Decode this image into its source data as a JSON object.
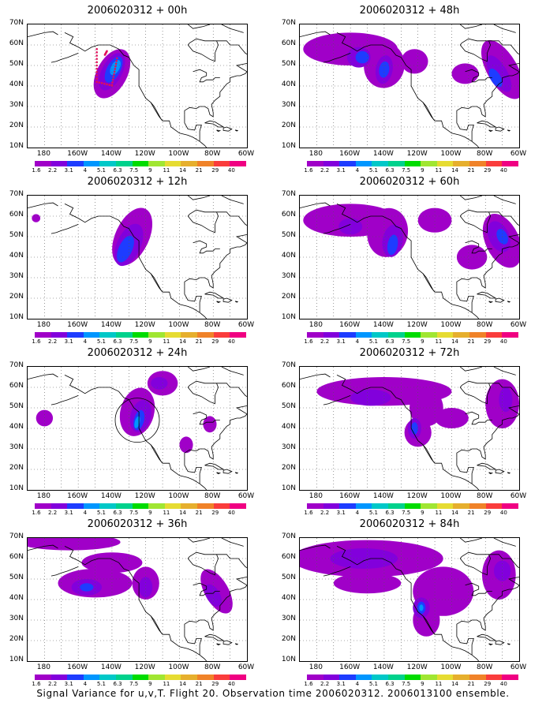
{
  "caption": "Signal Variance for u,v,T. Flight 20. Observation time 2006020312. 2006013100 ensemble.",
  "lat_labels": [
    "70N",
    "60N",
    "50N",
    "40N",
    "30N",
    "20N",
    "10N"
  ],
  "lon_labels": [
    "180",
    "160W",
    "140W",
    "120W",
    "100W",
    "80W",
    "60W"
  ],
  "colorbar": {
    "labels": [
      "1.6",
      "2.2",
      "3.1",
      "4",
      "5.1",
      "6.3",
      "7.5",
      "9",
      "11",
      "14",
      "21",
      "29",
      "40"
    ],
    "colors": [
      "#a000c8",
      "#8200dc",
      "#1e3cff",
      "#0096ff",
      "#00c8c8",
      "#00d28c",
      "#00dc00",
      "#a0e632",
      "#e6dc32",
      "#e6af2d",
      "#f08228",
      "#fa3c3c",
      "#f00082"
    ]
  },
  "panels": [
    {
      "title": "2006020312 + 00h",
      "lead_hours": 0
    },
    {
      "title": "2006020312 + 48h",
      "lead_hours": 48
    },
    {
      "title": "2006020312 + 12h",
      "lead_hours": 12
    },
    {
      "title": "2006020312 + 60h",
      "lead_hours": 60
    },
    {
      "title": "2006020312 + 24h",
      "lead_hours": 24
    },
    {
      "title": "2006020312 + 72h",
      "lead_hours": 72
    },
    {
      "title": "2006020312 + 36h",
      "lead_hours": 36
    },
    {
      "title": "2006020312 + 84h",
      "lead_hours": 84
    }
  ]
}
